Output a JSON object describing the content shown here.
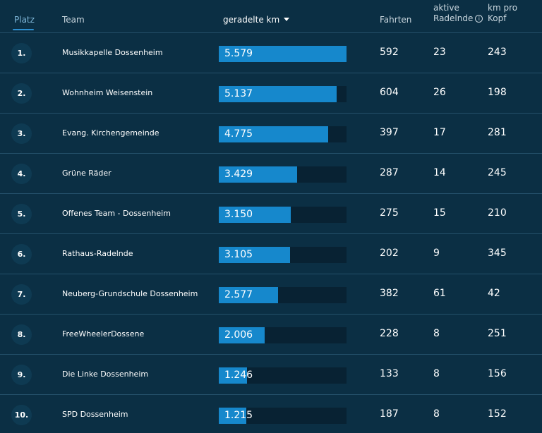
{
  "header": {
    "rank": "Platz",
    "team": "Team",
    "km": "geradelte km",
    "rides": "Fahrten",
    "active_line1": "aktive",
    "active_line2": "Radelnde",
    "kmpp_line1": "km pro",
    "kmpp_line2": "Kopf"
  },
  "icons": {
    "sort": "chevron-down-icon",
    "info": "info-icon"
  },
  "colors": {
    "background": "#0b2f44",
    "bar_fill": "#1688cc",
    "bar_track": "#082233",
    "accent": "#2d8fd0"
  },
  "rows": [
    {
      "rank": "1.",
      "team": "Musikkapelle Dossenheim",
      "km": "5.579",
      "km_value": 5579,
      "rides": "592",
      "active": "23",
      "kmpp": "243"
    },
    {
      "rank": "2.",
      "team": "Wohnheim Weisenstein",
      "km": "5.137",
      "km_value": 5137,
      "rides": "604",
      "active": "26",
      "kmpp": "198"
    },
    {
      "rank": "3.",
      "team": "Evang. Kirchengemeinde",
      "km": "4.775",
      "km_value": 4775,
      "rides": "397",
      "active": "17",
      "kmpp": "281"
    },
    {
      "rank": "4.",
      "team": "Grüne Räder",
      "km": "3.429",
      "km_value": 3429,
      "rides": "287",
      "active": "14",
      "kmpp": "245"
    },
    {
      "rank": "5.",
      "team": "Offenes Team - Dossenheim",
      "km": "3.150",
      "km_value": 3150,
      "rides": "275",
      "active": "15",
      "kmpp": "210"
    },
    {
      "rank": "6.",
      "team": "Rathaus-Radelnde",
      "km": "3.105",
      "km_value": 3105,
      "rides": "202",
      "active": "9",
      "kmpp": "345"
    },
    {
      "rank": "7.",
      "team": "Neuberg-Grundschule Dossenheim",
      "km": "2.577",
      "km_value": 2577,
      "rides": "382",
      "active": "61",
      "kmpp": "42"
    },
    {
      "rank": "8.",
      "team": "FreeWheelerDossene",
      "km": "2.006",
      "km_value": 2006,
      "rides": "228",
      "active": "8",
      "kmpp": "251"
    },
    {
      "rank": "9.",
      "team": "Die Linke Dossenheim",
      "km": "1.246",
      "km_value": 1246,
      "rides": "133",
      "active": "8",
      "kmpp": "156"
    },
    {
      "rank": "10.",
      "team": "SPD Dossenheim",
      "km": "1.215",
      "km_value": 1215,
      "rides": "187",
      "active": "8",
      "kmpp": "152"
    }
  ]
}
